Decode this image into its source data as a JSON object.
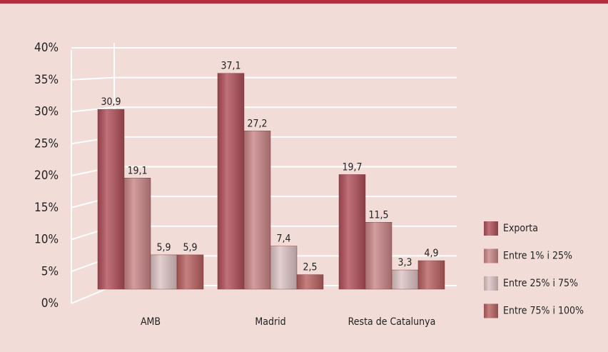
{
  "chart_data": {
    "type": "bar",
    "categories": [
      "AMB",
      "Madrid",
      "Resta de Catalunya"
    ],
    "series": [
      {
        "name": "Exporta",
        "color": "#b04e58",
        "values": [
          30.9,
          37.1,
          19.7
        ],
        "value_labels": [
          "30,9",
          "37,1",
          "19,7"
        ]
      },
      {
        "name": "Entre 1% i 25%",
        "color": "#c98486",
        "values": [
          19.1,
          27.2,
          11.5
        ],
        "value_labels": [
          "19,1",
          "27,2",
          "11,5"
        ]
      },
      {
        "name": "Entre 25% i 75%",
        "color": "#dcc3c3",
        "values": [
          5.9,
          7.4,
          3.3
        ],
        "value_labels": [
          "5,9",
          "7,4",
          "3,3"
        ]
      },
      {
        "name": "Entre 75% i 100%",
        "color": "#b6605f",
        "values": [
          5.9,
          2.5,
          4.9
        ],
        "value_labels": [
          "5,9",
          "2,5",
          "4,9"
        ]
      }
    ],
    "ylim": [
      0,
      40
    ],
    "yticks": [
      {
        "value": 0,
        "label": "0%"
      },
      {
        "value": 5,
        "label": "5%"
      },
      {
        "value": 10,
        "label": "10%"
      },
      {
        "value": 15,
        "label": "15%"
      },
      {
        "value": 20,
        "label": "20%"
      },
      {
        "value": 25,
        "label": "25%"
      },
      {
        "value": 30,
        "label": "30%"
      },
      {
        "value": 35,
        "label": "35%"
      },
      {
        "value": 40,
        "label": "40%"
      }
    ],
    "grid": true
  }
}
